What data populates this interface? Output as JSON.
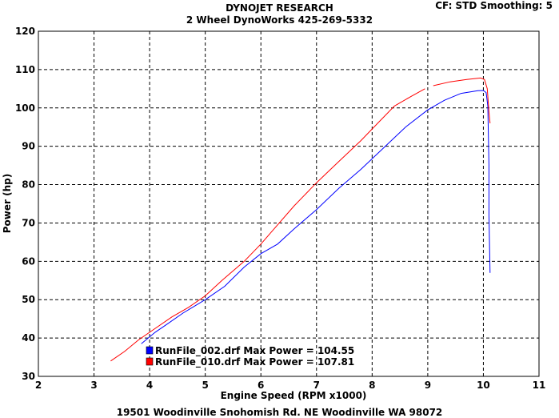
{
  "header": {
    "title": "DYNOJET RESEARCH",
    "subtitle": "2 Wheel DynoWorks 425-269-5332",
    "settings": "CF: STD  Smoothing: 5"
  },
  "footer": {
    "address": "19501 Woodinville Snohomish Rd. NE Woodinville WA 98072"
  },
  "chart_data": {
    "type": "line",
    "title": "DYNOJET RESEARCH",
    "xlabel": "Engine Speed (RPM x1000)",
    "ylabel": "Power (hp)",
    "xlim": [
      2,
      11
    ],
    "ylim": [
      30,
      120
    ],
    "xticks": [
      2,
      3,
      4,
      5,
      6,
      7,
      8,
      9,
      10,
      11
    ],
    "yticks": [
      30,
      40,
      50,
      60,
      70,
      80,
      90,
      100,
      110,
      120
    ],
    "grid": true,
    "legend_position": "bottom-left",
    "series": [
      {
        "name": "RunFile_002.drf",
        "legend_label": "RunFile_002.drf Max Power = 104.55",
        "max_power": 104.55,
        "color": "#0000ff",
        "points": [
          [
            3.85,
            38.5
          ],
          [
            4.1,
            41.5
          ],
          [
            4.3,
            43.5
          ],
          [
            4.6,
            46.5
          ],
          [
            5.0,
            50.0
          ],
          [
            5.35,
            53.5
          ],
          [
            5.7,
            58.5
          ],
          [
            6.0,
            62.0
          ],
          [
            6.3,
            64.5
          ],
          [
            6.6,
            68.5
          ],
          [
            7.0,
            73.5
          ],
          [
            7.4,
            79.0
          ],
          [
            7.8,
            84.0
          ],
          [
            8.2,
            89.5
          ],
          [
            8.6,
            95.0
          ],
          [
            9.0,
            99.5
          ],
          [
            9.3,
            102.0
          ],
          [
            9.6,
            103.8
          ],
          [
            9.9,
            104.5
          ],
          [
            10.0,
            104.55
          ],
          [
            10.05,
            104.0
          ],
          [
            10.08,
            100.5
          ],
          [
            10.1,
            85.0
          ],
          [
            10.1,
            72.0
          ],
          [
            10.12,
            57.0
          ]
        ]
      },
      {
        "name": "RunFile_010.drf",
        "legend_label": "RunFile_010.drf Max Power = 107.81",
        "max_power": 107.81,
        "color": "#ff0000",
        "segments": [
          [
            [
              3.3,
              34.0
            ],
            [
              3.55,
              36.5
            ],
            [
              3.8,
              39.5
            ],
            [
              4.1,
              42.5
            ],
            [
              4.4,
              45.5
            ],
            [
              4.7,
              48.0
            ],
            [
              5.0,
              51.0
            ],
            [
              5.3,
              55.0
            ],
            [
              5.7,
              60.0
            ],
            [
              6.0,
              64.5
            ],
            [
              6.3,
              69.5
            ],
            [
              6.6,
              74.5
            ],
            [
              7.0,
              80.5
            ],
            [
              7.4,
              86.0
            ],
            [
              7.8,
              91.5
            ],
            [
              8.1,
              96.0
            ],
            [
              8.4,
              100.5
            ],
            [
              8.7,
              103.0
            ],
            [
              8.95,
              105.0
            ]
          ],
          [
            [
              9.1,
              105.8
            ],
            [
              9.4,
              106.8
            ],
            [
              9.7,
              107.4
            ],
            [
              9.95,
              107.81
            ],
            [
              10.02,
              107.4
            ],
            [
              10.07,
              105.0
            ],
            [
              10.1,
              99.0
            ],
            [
              10.12,
              96.0
            ]
          ]
        ]
      }
    ]
  }
}
